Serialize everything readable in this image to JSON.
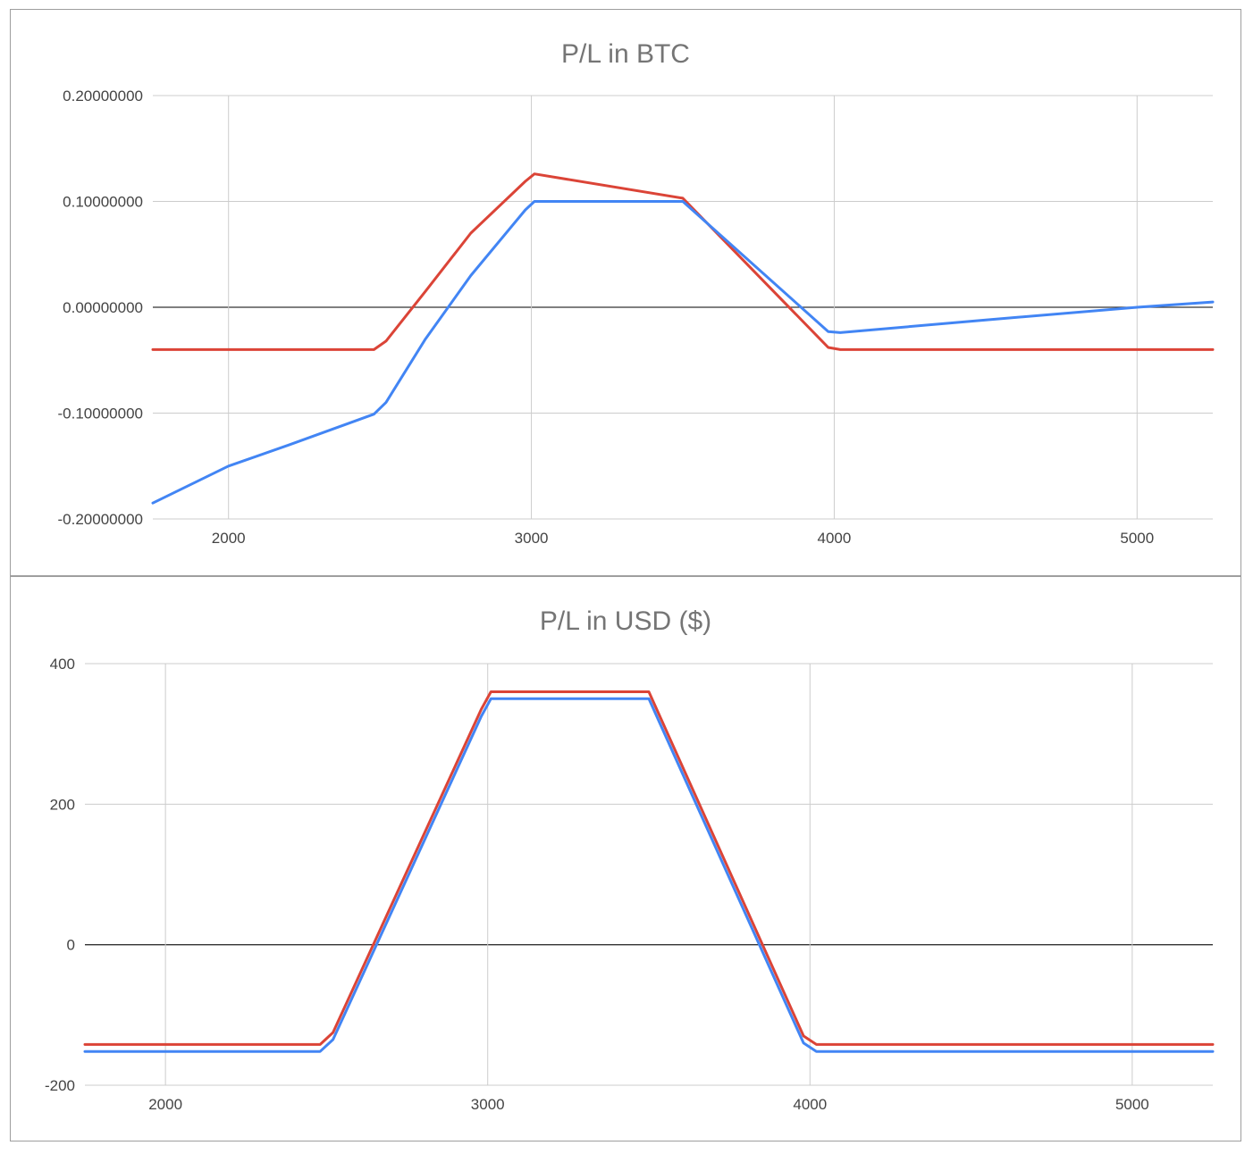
{
  "colors": {
    "red": "#db4437",
    "blue": "#4285f4",
    "grid": "#cccccc",
    "zero": "#333333"
  },
  "chart_data": [
    {
      "type": "line",
      "title": "P/L in BTC",
      "xlabel": "",
      "ylabel": "",
      "xlim": [
        1750,
        5250
      ],
      "ylim": [
        -0.2,
        0.2
      ],
      "xticks": [
        2000,
        3000,
        4000,
        5000
      ],
      "yticks": [
        -0.2,
        -0.1,
        0,
        0.1,
        0.2
      ],
      "ytick_labels": [
        "-0.20000000",
        "-0.10000000",
        "0.00000000",
        "0.10000000",
        "0.20000000"
      ],
      "grid": true,
      "legend": "none",
      "series": [
        {
          "color": "#db4437",
          "x": [
            1750,
            2480,
            2520,
            2650,
            2800,
            2980,
            3010,
            3500,
            3980,
            4020,
            5250
          ],
          "y": [
            -0.04,
            -0.04,
            -0.032,
            0.015,
            0.07,
            0.119,
            0.126,
            0.103,
            -0.038,
            -0.04,
            -0.04
          ]
        },
        {
          "color": "#4285f4",
          "x": [
            1750,
            2000,
            2200,
            2480,
            2520,
            2650,
            2800,
            2980,
            3010,
            3500,
            3980,
            4020,
            4500,
            5000,
            5250
          ],
          "y": [
            -0.185,
            -0.15,
            -0.13,
            -0.101,
            -0.09,
            -0.03,
            0.03,
            0.092,
            0.1,
            0.1,
            -0.023,
            -0.024,
            -0.012,
            0.0,
            0.005
          ]
        }
      ]
    },
    {
      "type": "line",
      "title": "P/L in USD ($)",
      "xlabel": "",
      "ylabel": "",
      "xlim": [
        1750,
        5250
      ],
      "ylim": [
        -200,
        400
      ],
      "xticks": [
        2000,
        3000,
        4000,
        5000
      ],
      "yticks": [
        -200,
        0,
        200,
        400
      ],
      "ytick_labels": [
        "-200",
        "0",
        "200",
        "400"
      ],
      "grid": true,
      "legend": "none",
      "series": [
        {
          "color": "#db4437",
          "x": [
            1750,
            2480,
            2520,
            2980,
            3010,
            3500,
            3980,
            4020,
            5250
          ],
          "y": [
            -142,
            -142,
            -125,
            335,
            360,
            360,
            -130,
            -142,
            -142
          ]
        },
        {
          "color": "#4285f4",
          "x": [
            1750,
            2480,
            2520,
            2980,
            3010,
            3500,
            3980,
            4020,
            5250
          ],
          "y": [
            -152,
            -152,
            -135,
            325,
            350,
            350,
            -140,
            -152,
            -152
          ]
        }
      ]
    }
  ]
}
